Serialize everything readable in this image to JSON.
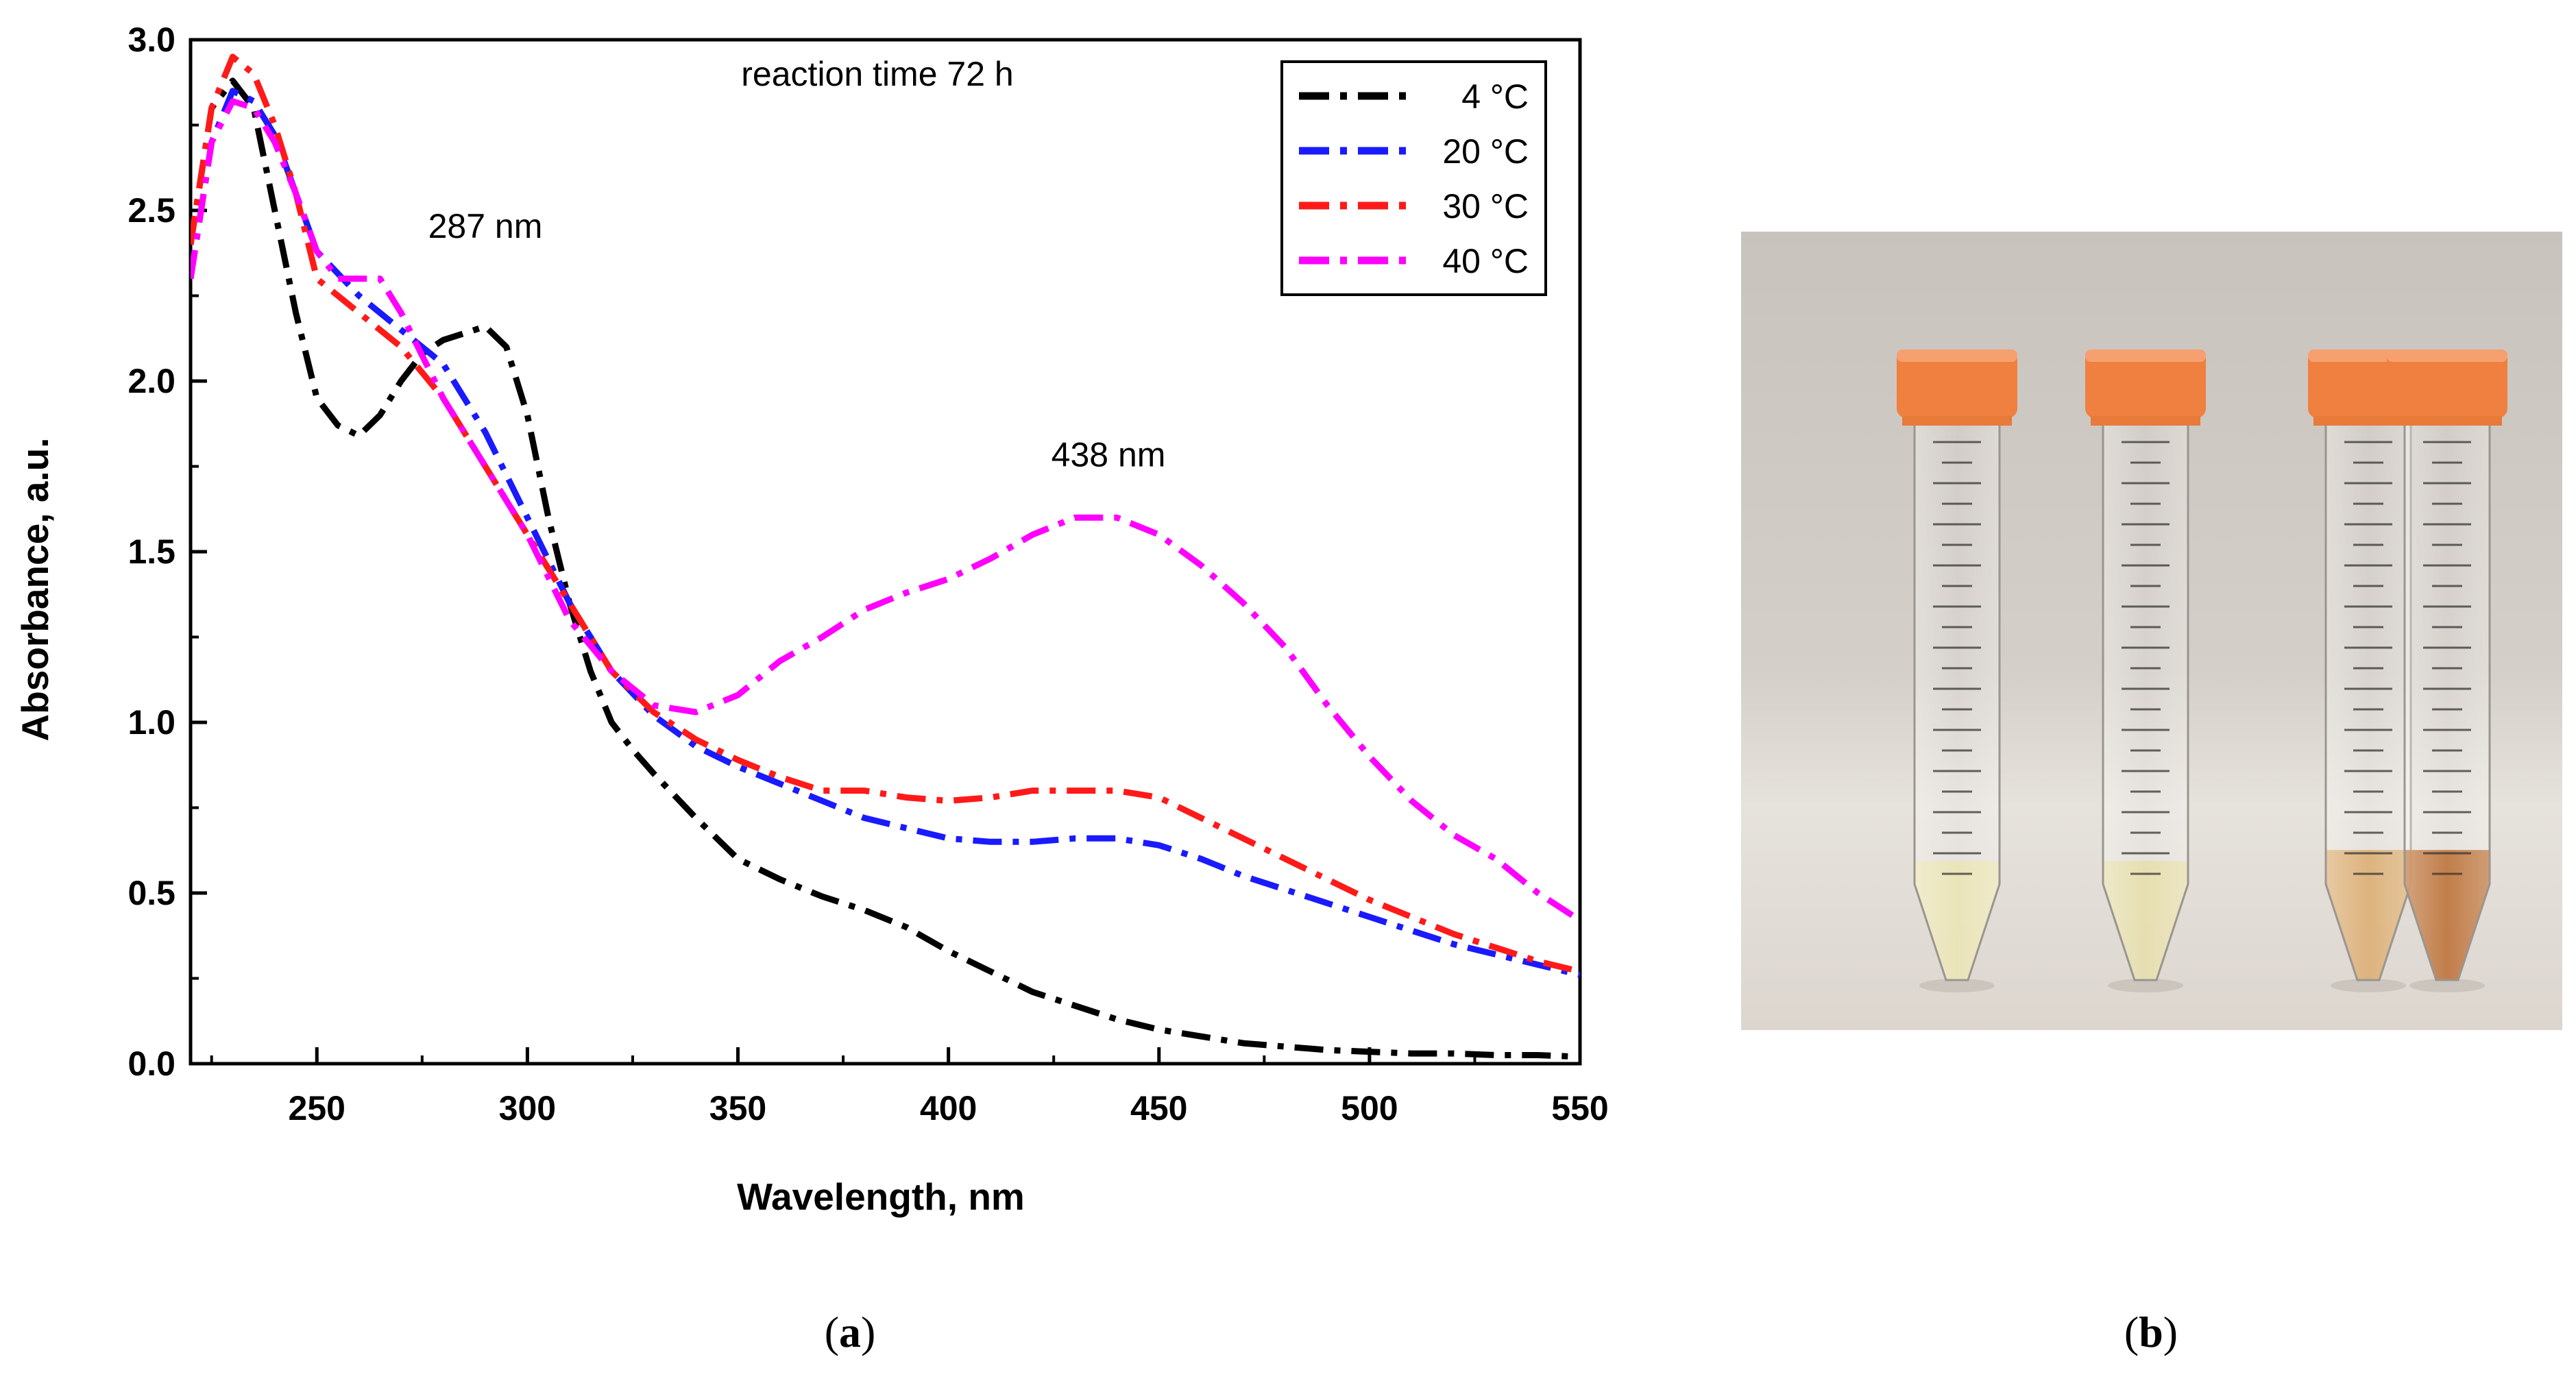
{
  "chart_data": {
    "type": "line",
    "title": "reaction time 72 h",
    "xlabel": "Wavelength, nm",
    "ylabel": "Absorbance, a.u.",
    "xlim": [
      220,
      550
    ],
    "ylim": [
      0,
      3.0
    ],
    "xticks": [
      250,
      300,
      350,
      400,
      450,
      500,
      550
    ],
    "yticks": [
      0.0,
      0.5,
      1.0,
      1.5,
      2.0,
      2.5,
      3.0
    ],
    "xtick_labels": [
      "250",
      "300",
      "350",
      "400",
      "450",
      "500",
      "550"
    ],
    "ytick_labels": [
      "0.0",
      "0.5",
      "1.0",
      "1.5",
      "2.0",
      "2.5",
      "3.0"
    ],
    "legend_position": "top-right",
    "annotations": [
      {
        "text": "287 nm",
        "x": 290,
        "y": 2.42
      },
      {
        "text": "438 nm",
        "x": 438,
        "y": 1.75
      }
    ],
    "series": [
      {
        "name": "4 °C",
        "color": "#000000",
        "x": [
          220,
          225,
          230,
          235,
          240,
          245,
          250,
          255,
          260,
          265,
          270,
          275,
          280,
          285,
          290,
          295,
          300,
          305,
          310,
          315,
          320,
          325,
          330,
          340,
          350,
          360,
          370,
          380,
          390,
          400,
          410,
          420,
          430,
          440,
          450,
          460,
          470,
          480,
          490,
          500,
          510,
          520,
          530,
          540,
          550
        ],
        "y": [
          2.4,
          2.8,
          2.88,
          2.8,
          2.5,
          2.2,
          1.95,
          1.87,
          1.84,
          1.9,
          2.0,
          2.08,
          2.12,
          2.14,
          2.16,
          2.1,
          1.9,
          1.6,
          1.35,
          1.15,
          1.0,
          0.92,
          0.85,
          0.72,
          0.6,
          0.54,
          0.49,
          0.45,
          0.4,
          0.33,
          0.27,
          0.21,
          0.17,
          0.13,
          0.1,
          0.08,
          0.06,
          0.05,
          0.04,
          0.035,
          0.03,
          0.03,
          0.025,
          0.025,
          0.02
        ]
      },
      {
        "name": "20 °C",
        "color": "#1a1aff",
        "x": [
          220,
          225,
          230,
          235,
          240,
          245,
          250,
          260,
          270,
          280,
          290,
          300,
          310,
          320,
          330,
          340,
          350,
          360,
          370,
          380,
          390,
          400,
          410,
          420,
          430,
          440,
          450,
          460,
          470,
          480,
          490,
          500,
          510,
          520,
          530,
          540,
          550
        ],
        "y": [
          2.3,
          2.7,
          2.85,
          2.82,
          2.72,
          2.55,
          2.38,
          2.25,
          2.15,
          2.05,
          1.85,
          1.6,
          1.35,
          1.15,
          1.02,
          0.93,
          0.87,
          0.82,
          0.77,
          0.72,
          0.69,
          0.66,
          0.65,
          0.65,
          0.66,
          0.66,
          0.64,
          0.6,
          0.55,
          0.51,
          0.47,
          0.43,
          0.39,
          0.35,
          0.32,
          0.29,
          0.26
        ]
      },
      {
        "name": "30 °C",
        "color": "#ff1a1a",
        "x": [
          220,
          225,
          230,
          235,
          240,
          245,
          250,
          260,
          270,
          280,
          290,
          300,
          310,
          320,
          330,
          340,
          350,
          360,
          370,
          380,
          390,
          400,
          410,
          420,
          430,
          440,
          450,
          460,
          470,
          480,
          490,
          500,
          510,
          520,
          530,
          540,
          550
        ],
        "y": [
          2.4,
          2.8,
          2.95,
          2.9,
          2.75,
          2.55,
          2.3,
          2.2,
          2.1,
          1.95,
          1.75,
          1.55,
          1.35,
          1.15,
          1.03,
          0.95,
          0.89,
          0.84,
          0.8,
          0.8,
          0.78,
          0.77,
          0.78,
          0.8,
          0.8,
          0.8,
          0.78,
          0.72,
          0.66,
          0.6,
          0.54,
          0.48,
          0.43,
          0.38,
          0.34,
          0.3,
          0.27
        ]
      },
      {
        "name": "40 °C",
        "color": "#ff00ff",
        "x": [
          220,
          225,
          230,
          235,
          240,
          245,
          250,
          255,
          260,
          265,
          270,
          280,
          290,
          300,
          310,
          320,
          330,
          340,
          350,
          360,
          370,
          380,
          390,
          400,
          410,
          420,
          430,
          440,
          450,
          460,
          470,
          480,
          490,
          500,
          510,
          520,
          530,
          540,
          550
        ],
        "y": [
          2.3,
          2.7,
          2.82,
          2.8,
          2.7,
          2.55,
          2.38,
          2.3,
          2.3,
          2.3,
          2.2,
          1.95,
          1.75,
          1.55,
          1.3,
          1.15,
          1.05,
          1.03,
          1.08,
          1.18,
          1.25,
          1.33,
          1.38,
          1.42,
          1.48,
          1.55,
          1.6,
          1.6,
          1.55,
          1.46,
          1.35,
          1.22,
          1.05,
          0.9,
          0.77,
          0.67,
          0.6,
          0.5,
          0.42
        ]
      }
    ]
  },
  "photo": {
    "tubes": [
      {
        "liquid_color": "#e8e2b0",
        "fill_level": 0.36
      },
      {
        "liquid_color": "#e4dba6",
        "fill_level": 0.36
      },
      {
        "liquid_color": "#d9a86a",
        "fill_level": 0.38
      },
      {
        "liquid_color": "#b8692c",
        "fill_level": 0.38
      }
    ],
    "cap_color": "#f08040"
  },
  "labels": {
    "panel_a": "(a)",
    "panel_b": "(b)",
    "panel_a_letter": "a",
    "panel_b_letter": "b"
  }
}
